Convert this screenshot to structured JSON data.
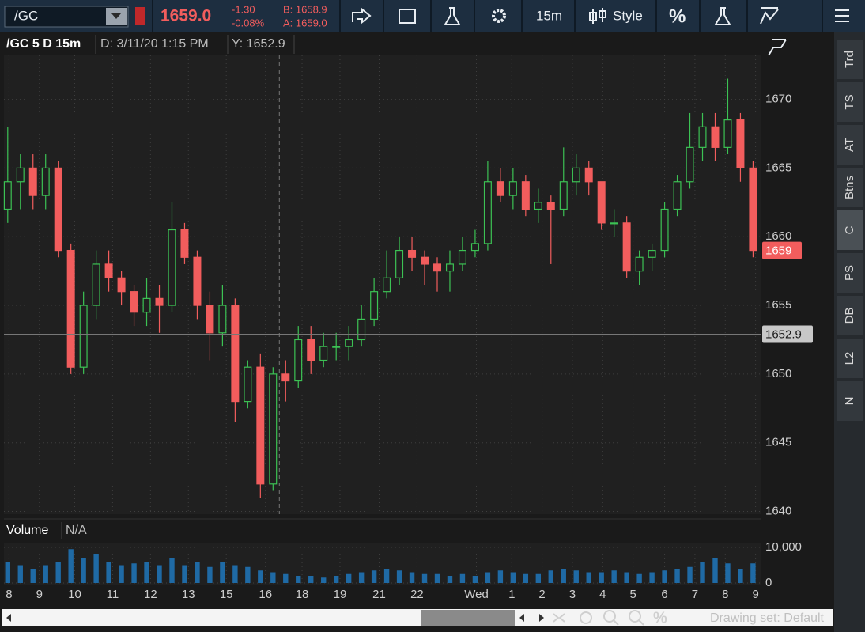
{
  "toolbar": {
    "symbol": "/GC",
    "last": "1659.0",
    "change": "-1.30",
    "change_pct": "-0.08%",
    "bid": "B: 1658.9",
    "ask": "A: 1659.0",
    "interval": "15m",
    "style": "Style",
    "percent": "%"
  },
  "side_tabs": [
    "Trd",
    "TS",
    "AT",
    "Btns",
    "C",
    "PS",
    "DB",
    "L2",
    "N"
  ],
  "footer": {
    "drawing_set": "Drawing set: Default"
  },
  "chart_data": [
    {
      "type": "candlestick",
      "title": "/GC 5 D 15m",
      "cursor_date": "D: 3/11/20 1:15 PM",
      "cursor_y": "Y: 1652.9",
      "crosshair_y": 1652.9,
      "last_price": 1659,
      "up_color": "#3cc254",
      "down_color": "#f25d5d",
      "grid": true,
      "open": [
        1662,
        1664,
        1665,
        1663,
        1665,
        1659,
        1650.5,
        1655,
        1658,
        1657,
        1656,
        1654.5,
        1655.5,
        1655,
        1660.5,
        1658.5,
        1655,
        1653,
        1655,
        1648,
        1650.5,
        1642,
        1650,
        1649.5,
        1652.5,
        1651,
        1652,
        1652,
        1652.5,
        1654,
        1656,
        1657,
        1659,
        1658.5,
        1658,
        1657.5,
        1658,
        1659,
        1659.5,
        1664,
        1663,
        1664,
        1662,
        1662.5,
        1662,
        1664,
        1665,
        1664,
        1661,
        1661,
        1657.5,
        1658.5,
        1659,
        1662,
        1664,
        1666.5,
        1668,
        1666.5,
        1668.5,
        1665
      ],
      "high": [
        1668,
        1666,
        1666,
        1666,
        1665.5,
        1659.5,
        1656,
        1659,
        1659,
        1657.5,
        1656.5,
        1657,
        1656.5,
        1662.5,
        1661,
        1659,
        1656,
        1656.5,
        1655.5,
        1651,
        1651.5,
        1650.5,
        1651,
        1653.5,
        1653.5,
        1653,
        1653,
        1653.5,
        1655,
        1657,
        1659,
        1660,
        1660,
        1659,
        1658.5,
        1659,
        1660,
        1660.5,
        1665.5,
        1665,
        1665,
        1664.5,
        1663.5,
        1663,
        1666.5,
        1666,
        1665.5,
        1664,
        1662,
        1661.5,
        1659,
        1659.5,
        1662.5,
        1664.5,
        1669,
        1669,
        1669,
        1671.5,
        1669,
        1665.5
      ],
      "low": [
        1661,
        1662,
        1662,
        1662,
        1658.5,
        1650,
        1650,
        1654,
        1656,
        1655,
        1653.5,
        1653.5,
        1653,
        1654.5,
        1658,
        1654,
        1651,
        1652,
        1646.5,
        1647.5,
        1641,
        1641.5,
        1648,
        1649,
        1650,
        1650.5,
        1651,
        1651,
        1652,
        1653.5,
        1655.5,
        1656.5,
        1657.5,
        1656.5,
        1656,
        1656,
        1657.5,
        1658.5,
        1659,
        1662.5,
        1662,
        1661.5,
        1661,
        1658,
        1661.5,
        1663,
        1663,
        1660.5,
        1660,
        1657,
        1656.5,
        1657.5,
        1658.5,
        1661.5,
        1663.5,
        1665.5,
        1665.5,
        1666,
        1664,
        1658.5
      ],
      "close": [
        1664,
        1665,
        1663,
        1665,
        1659,
        1650.5,
        1655,
        1658,
        1657,
        1656,
        1654.5,
        1655.5,
        1655,
        1660.5,
        1658.5,
        1655,
        1653,
        1655,
        1648,
        1650.5,
        1642,
        1650,
        1649.5,
        1652.5,
        1651,
        1652,
        1652,
        1652.5,
        1654,
        1656,
        1657,
        1659,
        1658.5,
        1658,
        1657.5,
        1658,
        1659,
        1659.5,
        1664,
        1663,
        1664,
        1662,
        1662.5,
        1662,
        1664,
        1665,
        1664,
        1661,
        1661,
        1657.5,
        1658.5,
        1659,
        1662,
        1664,
        1666.5,
        1668,
        1666.5,
        1668.5,
        1665,
        1659
      ],
      "ylim": [
        1639.8,
        1673.2
      ],
      "yticks": [
        1640,
        1645,
        1650,
        1655,
        1660,
        1665,
        1670
      ],
      "xlim": [
        -0.3,
        59.6
      ],
      "xticks": [
        {
          "value": 0.1,
          "label": "8"
        },
        {
          "value": 2.5,
          "label": "9"
        },
        {
          "value": 5.3,
          "label": "10"
        },
        {
          "value": 8.3,
          "label": "11"
        },
        {
          "value": 11.3,
          "label": "12"
        },
        {
          "value": 14.3,
          "label": "13"
        },
        {
          "value": 17.3,
          "label": "15"
        },
        {
          "value": 20.4,
          "label": "16"
        },
        {
          "value": 23.3,
          "label": "18"
        },
        {
          "value": 26.3,
          "label": "19"
        },
        {
          "value": 29.4,
          "label": "21"
        },
        {
          "value": 32.4,
          "label": "22"
        },
        {
          "value": 37.1,
          "label": "Wed"
        },
        {
          "value": 39.9,
          "label": "1"
        },
        {
          "value": 42.3,
          "label": "2"
        },
        {
          "value": 44.7,
          "label": "3"
        },
        {
          "value": 47.1,
          "label": "4"
        },
        {
          "value": 49.5,
          "label": "5"
        },
        {
          "value": 52,
          "label": "6"
        },
        {
          "value": 54.4,
          "label": "7"
        },
        {
          "value": 56.8,
          "label": "8"
        },
        {
          "value": 59.2,
          "label": "9"
        }
      ],
      "crosshair_x": 21.5
    },
    {
      "type": "bar",
      "title": "Volume",
      "subtitle": "N/A",
      "color": "#1f6aa5",
      "values": [
        6000,
        5000,
        4000,
        5000,
        6000,
        9500,
        7000,
        8000,
        6000,
        5000,
        5500,
        6000,
        5000,
        7000,
        5000,
        6000,
        4500,
        6000,
        5000,
        4500,
        3500,
        3000,
        2500,
        2000,
        2000,
        1500,
        2000,
        2500,
        3000,
        3500,
        4000,
        3500,
        3000,
        2500,
        2500,
        2000,
        2500,
        2000,
        3000,
        3500,
        3000,
        2500,
        2500,
        3500,
        4000,
        3500,
        3000,
        3000,
        3500,
        3000,
        2500,
        3000,
        3500,
        4000,
        4500,
        6000,
        7000,
        5500,
        4000,
        5500
      ],
      "ylim": [
        -667,
        11333
      ],
      "yticks": [
        {
          "value": 0,
          "label": "0"
        },
        {
          "value": 10000,
          "label": "10,000"
        }
      ],
      "xlim": [
        -0.3,
        59.6
      ]
    }
  ]
}
